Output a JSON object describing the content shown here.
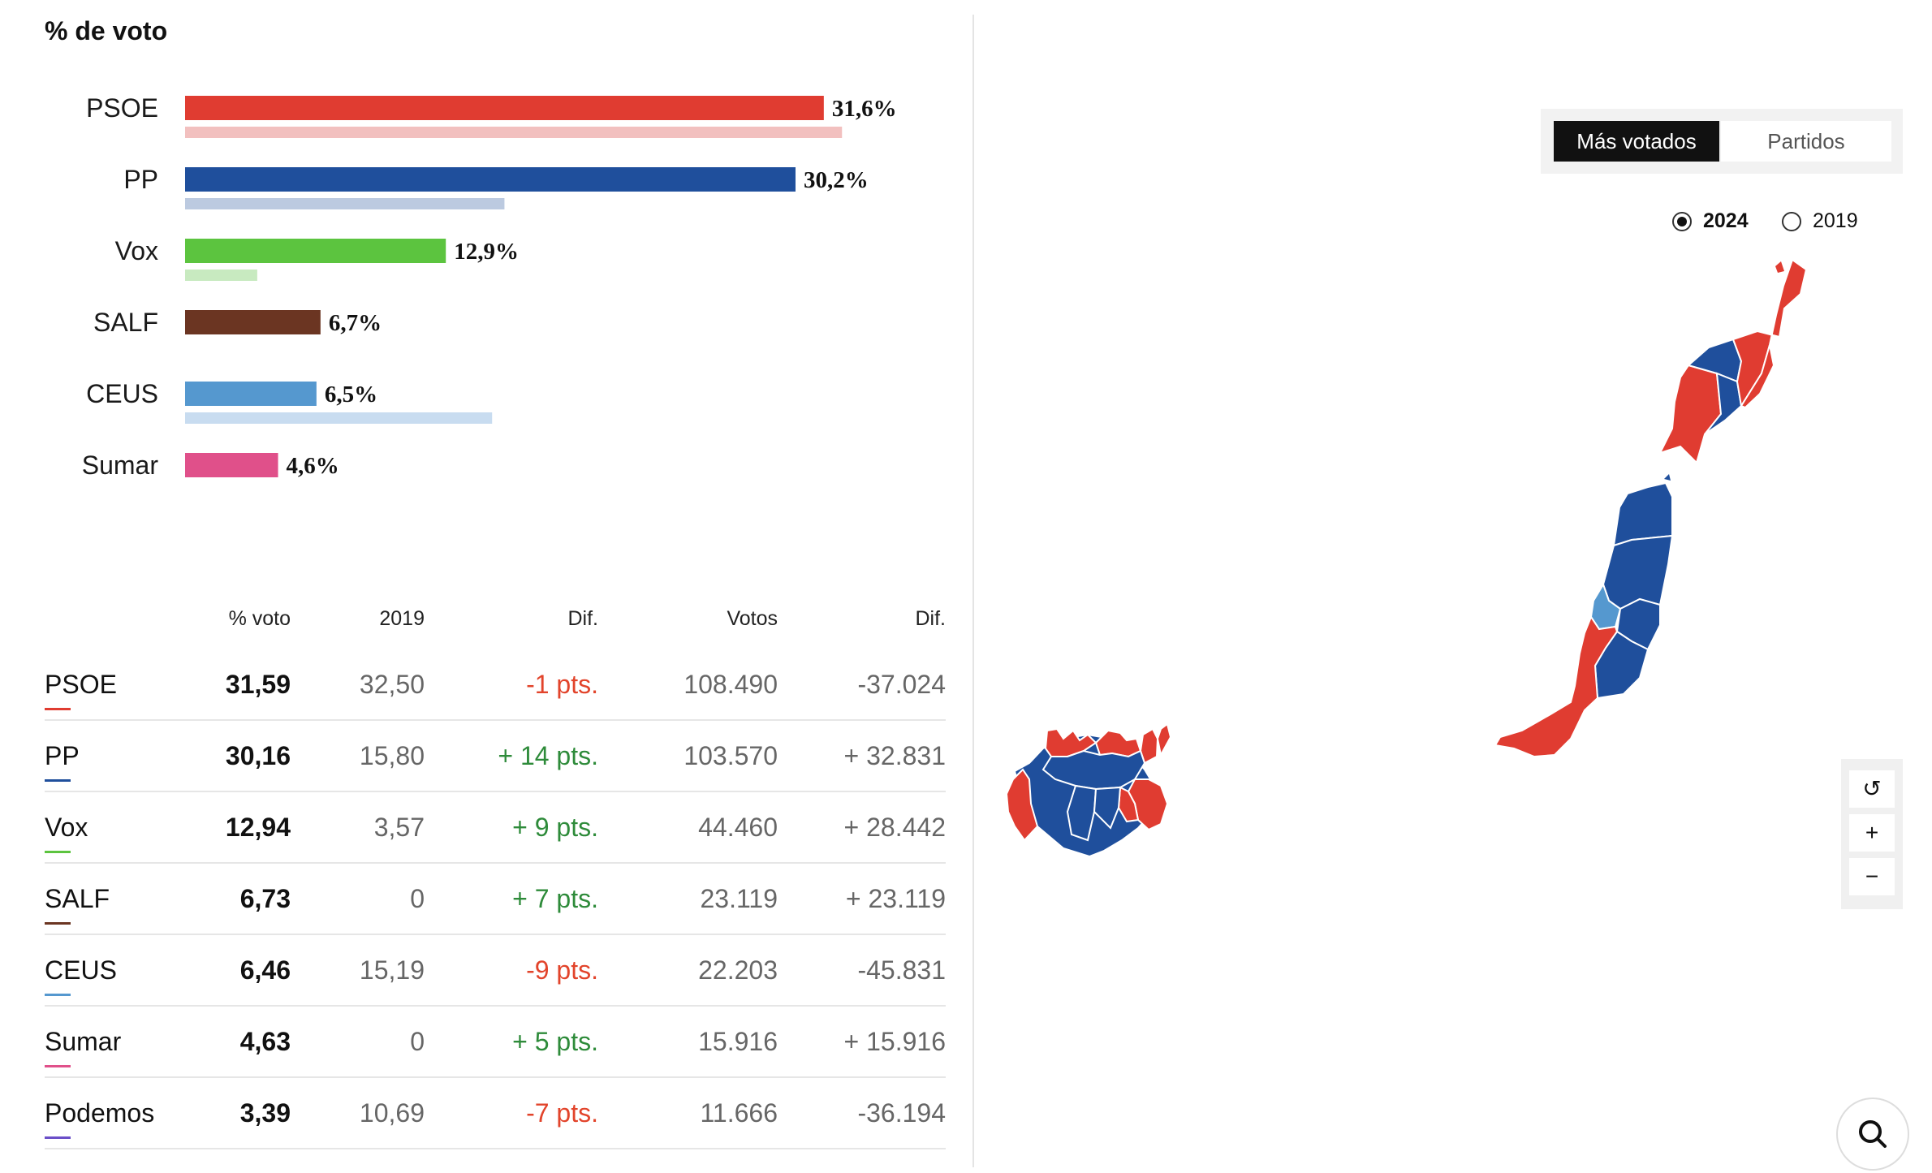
{
  "chart_data": {
    "type": "bar",
    "title": "% de voto",
    "categories": [
      "PSOE",
      "PP",
      "Vox",
      "SALF",
      "CEUS",
      "Sumar"
    ],
    "series": [
      {
        "values": [
          31.6,
          30.2,
          12.9,
          6.7,
          6.5,
          4.6
        ],
        "labels": [
          "31,6%",
          "30,2%",
          "12,9%",
          "6,7%",
          "6,5%",
          "4,6%"
        ]
      },
      {
        "values": [
          32.5,
          15.8,
          3.57,
          0,
          15.19,
          0
        ]
      }
    ],
    "colors": [
      "#e03c31",
      "#1f4f9c",
      "#5cc43f",
      "#6b3522",
      "#5598cf",
      "#e0508a"
    ],
    "colors_previous": [
      "#f2c0bf",
      "#bccae0",
      "#c8eac0",
      "#d8c6bc",
      "#c8dcf0",
      "#f3c6d8"
    ]
  },
  "table": {
    "headers": [
      "% voto",
      "2019",
      "Dif.",
      "Votos",
      "Dif."
    ],
    "rows": [
      {
        "party": "PSOE",
        "pct": "31,59",
        "prev": "32,50",
        "dif": "-1 pts.",
        "votes": "108.490",
        "vdif": "-37.024",
        "trend": "down",
        "color": "#e03c31"
      },
      {
        "party": "PP",
        "pct": "30,16",
        "prev": "15,80",
        "dif": "+ 14 pts.",
        "votes": "103.570",
        "vdif": "+ 32.831",
        "trend": "up",
        "color": "#1f4f9c"
      },
      {
        "party": "Vox",
        "pct": "12,94",
        "prev": "3,57",
        "dif": "+ 9 pts.",
        "votes": "44.460",
        "vdif": "+ 28.442",
        "trend": "up",
        "color": "#5cc43f"
      },
      {
        "party": "SALF",
        "pct": "6,73",
        "prev": "0",
        "dif": "+ 7 pts.",
        "votes": "23.119",
        "vdif": "+ 23.119",
        "trend": "up",
        "color": "#6b3522"
      },
      {
        "party": "CEUS",
        "pct": "6,46",
        "prev": "15,19",
        "dif": "-9 pts.",
        "votes": "22.203",
        "vdif": "-45.831",
        "trend": "down",
        "color": "#5598cf"
      },
      {
        "party": "Sumar",
        "pct": "4,63",
        "prev": "0",
        "dif": "+ 5 pts.",
        "votes": "15.916",
        "vdif": "+ 15.916",
        "trend": "up",
        "color": "#e0508a"
      },
      {
        "party": "Podemos",
        "pct": "3,39",
        "prev": "10,69",
        "dif": "-7 pts.",
        "votes": "11.666",
        "vdif": "-36.194",
        "trend": "down",
        "color": "#6b4fc8"
      }
    ]
  },
  "map_controls": {
    "toggle": [
      "Más votados",
      "Partidos"
    ],
    "years": [
      "2024",
      "2019"
    ],
    "zoom": [
      "↺",
      "+",
      "−"
    ]
  },
  "map_colors": {
    "psoe": "#e03c31",
    "pp": "#1f4f9c",
    "ceus": "#5598cf",
    "border": "#ffffff"
  }
}
